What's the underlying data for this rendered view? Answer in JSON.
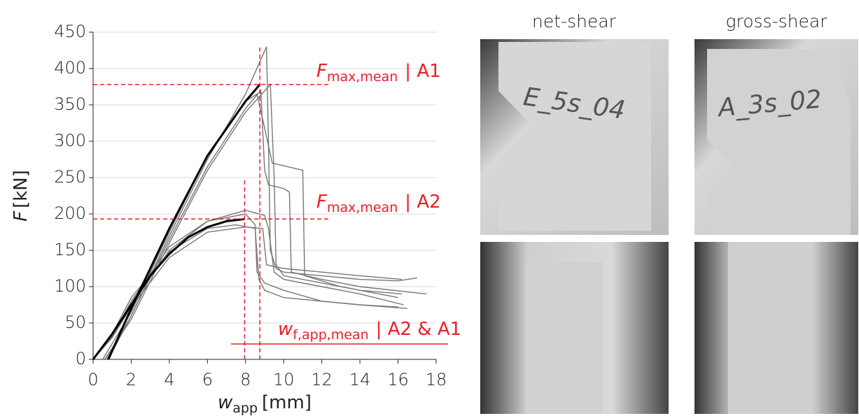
{
  "chart_data": {
    "type": "line",
    "xlabel": {
      "text": "w",
      "sub": "app",
      "unit": "[mm]"
    },
    "ylabel": {
      "text": "F",
      "unit": "[kN]"
    },
    "xlim": [
      0,
      18
    ],
    "xticks": [
      0,
      2,
      4,
      6,
      8,
      10,
      12,
      14,
      16,
      18
    ],
    "ylim": [
      0,
      450
    ],
    "yticks": [
      0,
      50,
      100,
      150,
      200,
      250,
      300,
      350,
      400,
      450
    ],
    "grid": true,
    "series": [
      {
        "color": "#777777",
        "x": [
          0.7,
          2,
          4,
          6,
          8,
          9.1,
          9.2,
          9.3,
          9.6,
          10,
          12,
          14,
          16,
          17
        ],
        "values": [
          0,
          60,
          170,
          275,
          365,
          430,
          300,
          150,
          125,
          120,
          115,
          110,
          108,
          112
        ]
      },
      {
        "color": "#777777",
        "x": [
          0.6,
          2,
          4,
          6,
          8,
          9.3,
          9.5,
          9.6,
          10,
          12,
          14,
          16.2
        ],
        "values": [
          0,
          55,
          160,
          260,
          340,
          378,
          250,
          130,
          115,
          105,
          95,
          90
        ]
      },
      {
        "color": "#777777",
        "x": [
          0.8,
          2,
          4,
          6,
          8,
          8.8,
          9,
          9.2,
          10,
          10.3,
          10.4,
          12,
          14,
          17.5
        ],
        "values": [
          0,
          60,
          165,
          265,
          345,
          370,
          260,
          240,
          235,
          230,
          120,
          110,
          100,
          90
        ]
      },
      {
        "color": "#777777",
        "x": [
          0.5,
          2,
          4,
          6,
          8,
          8.6,
          8.9,
          9.4,
          11,
          11.1,
          13,
          16
        ],
        "values": [
          0,
          65,
          175,
          280,
          355,
          365,
          330,
          270,
          260,
          115,
          100,
          85
        ]
      },
      {
        "color": "#777777",
        "x": [
          0,
          1,
          2,
          4,
          6,
          8,
          9,
          9.2,
          9.5,
          10,
          12,
          14,
          16.3
        ],
        "values": [
          0,
          30,
          75,
          150,
          190,
          205,
          198,
          180,
          120,
          110,
          100,
          90,
          75
        ]
      },
      {
        "color": "#777777",
        "x": [
          0,
          1,
          2,
          4,
          6,
          8,
          8.5,
          8.6,
          9,
          10,
          12,
          14,
          16.5
        ],
        "values": [
          0,
          32,
          80,
          155,
          190,
          200,
          185,
          120,
          105,
          95,
          80,
          75,
          70
        ]
      },
      {
        "color": "#777777",
        "x": [
          0,
          1,
          2,
          4,
          6,
          7.5,
          8.5,
          8.7,
          9,
          10,
          12,
          14,
          16
        ],
        "values": [
          0,
          35,
          85,
          148,
          180,
          185,
          180,
          110,
          95,
          85,
          80,
          75,
          72
        ]
      },
      {
        "color": "#777777",
        "x": [
          0,
          1,
          2,
          4,
          6,
          8,
          8.9,
          9.1,
          10,
          12,
          14,
          16.2
        ],
        "values": [
          0,
          30,
          72,
          140,
          175,
          182,
          180,
          130,
          125,
          120,
          115,
          110
        ]
      },
      {
        "color": "#000000",
        "x": [
          0.8,
          2,
          4,
          6,
          8,
          8.75
        ],
        "values": [
          0,
          70,
          180,
          280,
          355,
          378
        ]
      },
      {
        "color": "#000000",
        "x": [
          0,
          1,
          2,
          3,
          4,
          5,
          6,
          7,
          7.95
        ],
        "values": [
          0,
          35,
          75,
          115,
          145,
          168,
          182,
          190,
          193
        ]
      }
    ],
    "hlines": [
      378,
      193
    ],
    "vlines": [
      7.95,
      8.75
    ],
    "ref_color": "#e8202a",
    "annotations": [
      {
        "text": "F",
        "sub": "max,mean",
        "suffix": "| A1"
      },
      {
        "text": "F",
        "sub": "max,mean",
        "suffix": "| A2"
      },
      {
        "text": "w",
        "sub": "f,app,mean",
        "suffix": "| A2 & A1"
      }
    ]
  },
  "photos": [
    {
      "heading": "net-shear",
      "specimen": "E_5s_04"
    },
    {
      "heading": "gross-shear",
      "specimen": "A_3s_02"
    }
  ]
}
